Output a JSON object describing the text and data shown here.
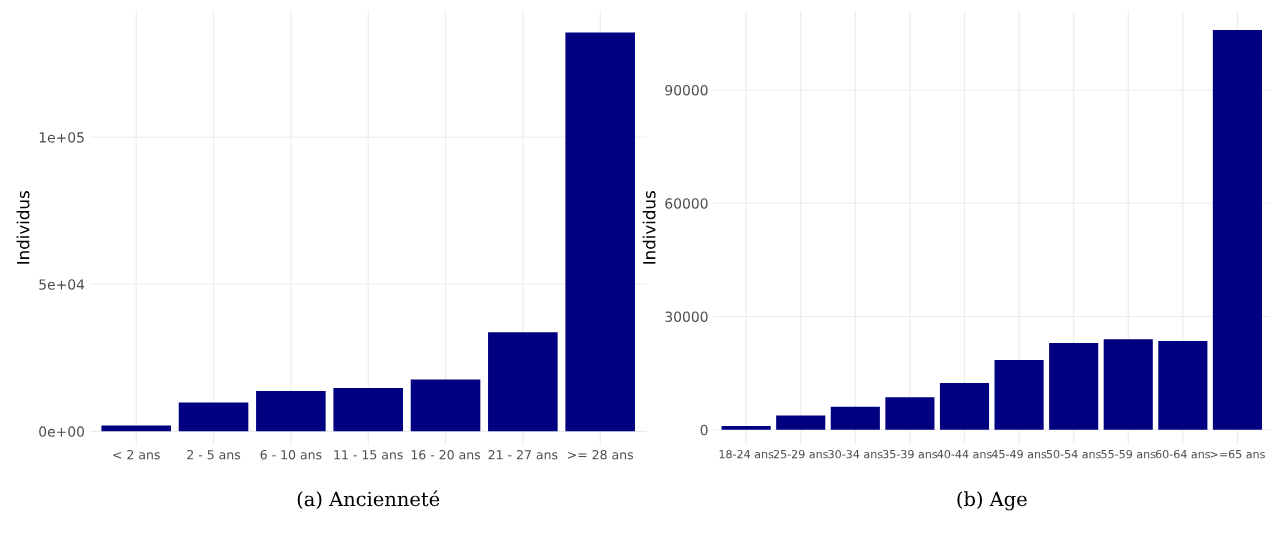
{
  "chart_data": [
    {
      "type": "bar",
      "title": "(a) Ancienneté",
      "ylabel": "Individus",
      "categories": [
        "< 2 ans",
        "2 - 5 ans",
        "6 - 10 ans",
        "11 - 15 ans",
        "16 - 20 ans",
        "21 - 27 ans",
        ">= 28 ans"
      ],
      "values": [
        2000,
        9800,
        13700,
        14700,
        17600,
        33700,
        135600
      ],
      "color": "#000080",
      "ylim": [
        -4600,
        143000
      ],
      "yticks": [
        {
          "value": 0,
          "label": "0e+00"
        },
        {
          "value": 50000,
          "label": "5e+04"
        },
        {
          "value": 100000,
          "label": "1e+05"
        }
      ],
      "grid": true
    },
    {
      "type": "bar",
      "title": "(b) Age",
      "ylabel": "Individus",
      "categories": [
        "18-24 ans",
        "25-29 ans",
        "30-34 ans",
        "35-39 ans",
        "40-44 ans",
        "45-49 ans",
        "50-54 ans",
        "55-59 ans",
        "60-64 ans",
        ">=65 ans"
      ],
      "values": [
        1000,
        3800,
        6100,
        8600,
        12400,
        18500,
        23000,
        24000,
        23500,
        105900
      ],
      "color": "#000080",
      "ylim": [
        -4000,
        111000
      ],
      "yticks": [
        0,
        30000,
        60000,
        90000
      ],
      "grid": true
    }
  ]
}
